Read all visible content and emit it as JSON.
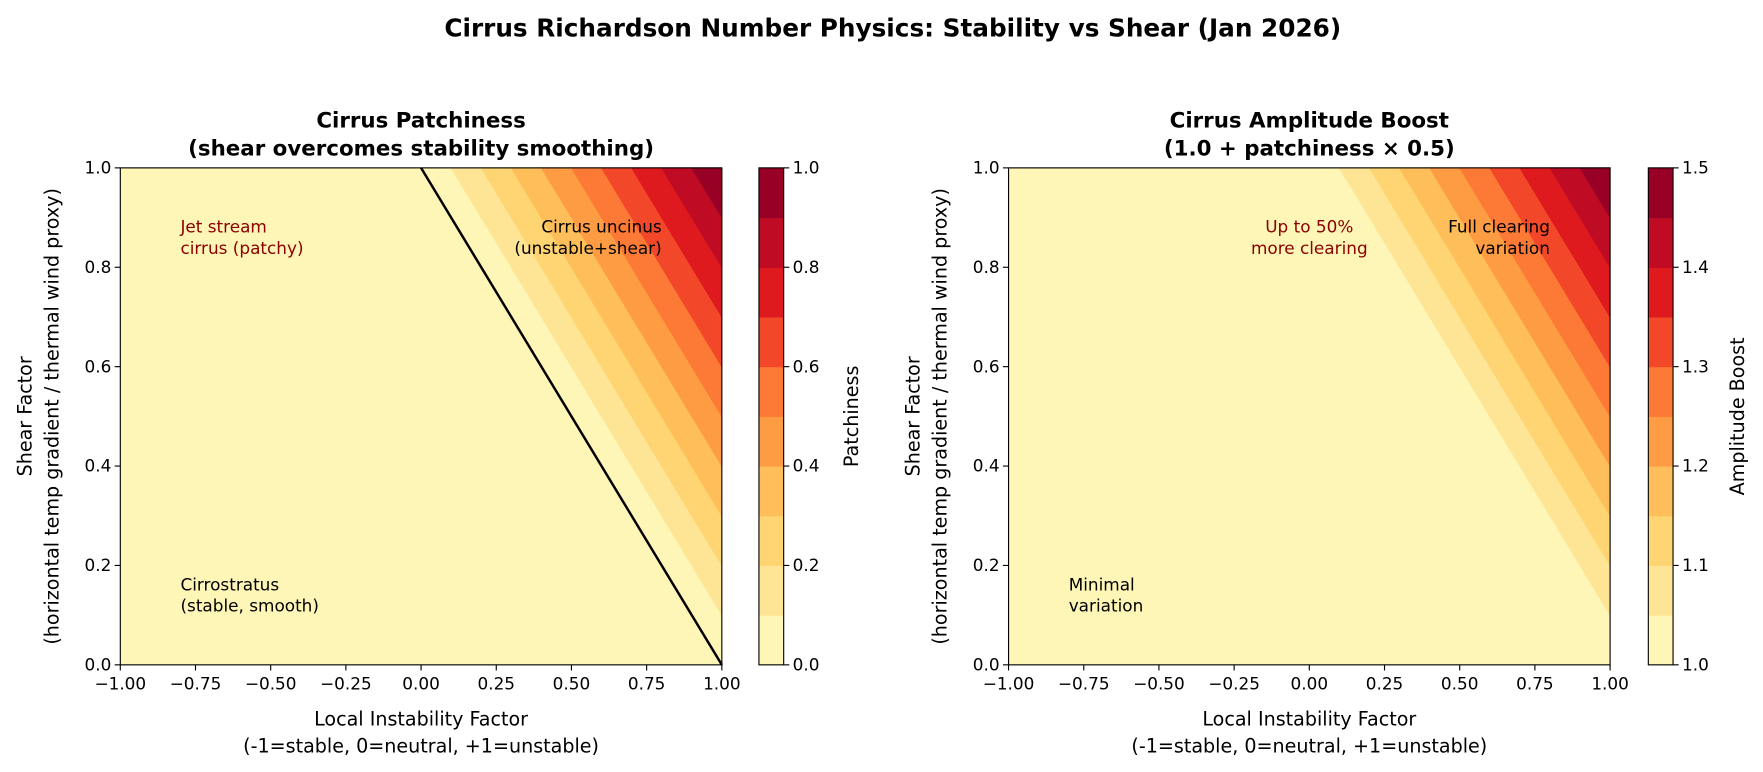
{
  "title": "Cirrus Richardson Number Physics: Stability vs Shear (Jan 2026)",
  "chart_data": [
    {
      "type": "contour",
      "title": [
        "Cirrus Patchiness",
        "(shear overcomes stability smoothing)"
      ],
      "xlabel": [
        "Local Instability Factor",
        "(-1=stable, 0=neutral, +1=unstable)"
      ],
      "ylabel": [
        "Shear Factor",
        "(horizontal temp gradient / thermal wind proxy)"
      ],
      "x": [
        -1,
        -0.5,
        0,
        0.5,
        1
      ],
      "y": [
        0,
        0.5,
        1
      ],
      "z": [
        [
          0,
          0,
          0,
          0,
          0
        ],
        [
          0,
          0,
          0,
          0,
          0.5
        ],
        [
          0,
          0,
          0,
          0.5,
          1
        ]
      ],
      "levels": [
        0,
        0.1,
        0.2,
        0.3,
        0.4,
        0.5,
        0.6,
        0.7,
        0.8,
        0.9,
        1
      ],
      "colors": [
        "#fef6b6",
        "#fee595",
        "#fed572",
        "#febe59",
        "#fd9c43",
        "#fc7a35",
        "#f24829",
        "#de1a1f",
        "#c00b24",
        "#990026"
      ],
      "xlim": [
        -1,
        1
      ],
      "ylim": [
        0,
        1
      ],
      "xticks": [
        {
          "value": -1,
          "label": "−1.00"
        },
        {
          "value": -0.75,
          "label": "−0.75"
        },
        {
          "value": -0.5,
          "label": "−0.50"
        },
        {
          "value": -0.25,
          "label": "−0.25"
        },
        {
          "value": 0,
          "label": "0.00"
        },
        {
          "value": 0.25,
          "label": "0.25"
        },
        {
          "value": 0.5,
          "label": "0.50"
        },
        {
          "value": 0.75,
          "label": "0.75"
        },
        {
          "value": 1,
          "label": "1.00"
        }
      ],
      "yticks": [
        {
          "value": 0,
          "label": "0.0"
        },
        0.2,
        0.4,
        0.6,
        0.8,
        {
          "value": 1,
          "label": "1.0"
        }
      ],
      "colorbar": {
        "label": "Patchiness",
        "ticks": [
          {
            "value": 0,
            "label": "0.0"
          },
          0.2,
          0.4,
          0.6,
          0.8,
          {
            "value": 1,
            "label": "1.0"
          }
        ]
      },
      "boundary": {
        "x": [
          0,
          1
        ],
        "y": [
          1,
          0
        ],
        "color": "#000000"
      },
      "annotations": [
        {
          "text": [
            "Jet stream",
            "cirrus (patchy)"
          ],
          "color": "#8b0000"
        },
        {
          "text": [
            "Cirrus uncinus",
            "(unstable+shear)"
          ],
          "color": "#000000"
        },
        {
          "text": [
            "Cirrostratus",
            "(stable, smooth)"
          ],
          "color": "#000000"
        }
      ]
    },
    {
      "type": "contour",
      "title": [
        "Cirrus Amplitude Boost",
        "(1.0 + patchiness × 0.5)"
      ],
      "xlabel": [
        "Local Instability Factor",
        "(-1=stable, 0=neutral, +1=unstable)"
      ],
      "ylabel": [
        "Shear Factor",
        "(horizontal temp gradient / thermal wind proxy)"
      ],
      "x": [
        -1,
        -0.5,
        0,
        0.5,
        1
      ],
      "y": [
        0,
        0.5,
        1
      ],
      "z": [
        [
          1,
          1,
          1,
          1,
          1
        ],
        [
          1,
          1,
          1,
          1,
          1.25
        ],
        [
          1,
          1,
          1,
          1.25,
          1.5
        ]
      ],
      "levels": [
        1,
        1.05,
        1.1,
        1.15,
        1.2,
        1.25,
        1.3,
        1.35,
        1.4,
        1.45,
        1.5
      ],
      "colors": [
        "#fef6b6",
        "#fee595",
        "#fed572",
        "#febe59",
        "#fd9c43",
        "#fc7a35",
        "#f24829",
        "#de1a1f",
        "#c00b24",
        "#990026"
      ],
      "xlim": [
        -1,
        1
      ],
      "ylim": [
        0,
        1
      ],
      "xticks": [
        {
          "value": -1,
          "label": "−1.00"
        },
        {
          "value": -0.75,
          "label": "−0.75"
        },
        {
          "value": -0.5,
          "label": "−0.50"
        },
        {
          "value": -0.25,
          "label": "−0.25"
        },
        {
          "value": 0,
          "label": "0.00"
        },
        {
          "value": 0.25,
          "label": "0.25"
        },
        {
          "value": 0.5,
          "label": "0.50"
        },
        {
          "value": 0.75,
          "label": "0.75"
        },
        {
          "value": 1,
          "label": "1.00"
        }
      ],
      "yticks": [
        {
          "value": 0,
          "label": "0.0"
        },
        0.2,
        0.4,
        0.6,
        0.8,
        {
          "value": 1,
          "label": "1.0"
        }
      ],
      "colorbar": {
        "label": "Amplitude Boost",
        "ticks": [
          {
            "value": 1,
            "label": "1.0"
          },
          1.1,
          1.2,
          1.3,
          1.4,
          1.5
        ]
      },
      "annotations": [
        {
          "text": [
            "Up to 50%",
            "more clearing"
          ],
          "color": "#8b0000"
        },
        {
          "text": [
            "Full clearing",
            "variation"
          ],
          "color": "#000000"
        },
        {
          "text": [
            "Minimal",
            "variation"
          ],
          "color": "#000000"
        }
      ]
    }
  ]
}
